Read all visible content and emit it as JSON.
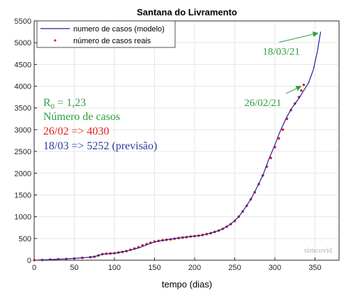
{
  "chart_data": {
    "type": "line",
    "title": "Santana do Livramento",
    "xlabel": "tempo (dias)",
    "ylabel": "",
    "xlim": [
      0,
      380
    ],
    "ylim": [
      0,
      5500
    ],
    "xticks": [
      0,
      50,
      100,
      150,
      200,
      250,
      300,
      350
    ],
    "yticks": [
      0,
      500,
      1000,
      1500,
      2000,
      2500,
      3000,
      3500,
      4000,
      4500,
      5000,
      5500
    ],
    "grid": true,
    "legend_position": "top-left",
    "series": [
      {
        "name": "numero de casos (modelo)",
        "style": "line",
        "color": "#1f1fa0",
        "x": [
          0,
          20,
          40,
          60,
          75,
          85,
          100,
          115,
          130,
          145,
          155,
          165,
          180,
          195,
          205,
          215,
          225,
          235,
          245,
          255,
          262,
          270,
          277,
          285,
          292,
          300,
          307,
          315,
          322,
          330,
          336,
          342,
          348,
          353,
          357
        ],
        "y": [
          0,
          15,
          30,
          55,
          80,
          140,
          160,
          210,
          280,
          390,
          440,
          470,
          510,
          545,
          565,
          600,
          650,
          720,
          830,
          1000,
          1180,
          1400,
          1650,
          1950,
          2300,
          2650,
          2980,
          3300,
          3520,
          3720,
          3900,
          4080,
          4380,
          4800,
          5252
        ]
      },
      {
        "name": "número de casos reais",
        "style": "markers",
        "color": "#e02020",
        "x": [
          0,
          10,
          20,
          30,
          40,
          50,
          60,
          70,
          75,
          80,
          85,
          90,
          95,
          100,
          105,
          110,
          115,
          120,
          125,
          130,
          135,
          140,
          145,
          150,
          155,
          160,
          165,
          170,
          175,
          180,
          185,
          190,
          195,
          200,
          205,
          210,
          215,
          220,
          225,
          230,
          235,
          240,
          245,
          250,
          255,
          260,
          265,
          270,
          275,
          280,
          285,
          290,
          295,
          300,
          305,
          310,
          315,
          320,
          325,
          330,
          333,
          336
        ],
        "y": [
          0,
          5,
          15,
          22,
          30,
          40,
          55,
          70,
          80,
          110,
          140,
          150,
          155,
          160,
          175,
          190,
          210,
          240,
          270,
          300,
          340,
          370,
          400,
          430,
          445,
          460,
          470,
          480,
          495,
          510,
          520,
          530,
          545,
          555,
          565,
          580,
          600,
          620,
          650,
          680,
          720,
          770,
          830,
          900,
          1000,
          1120,
          1250,
          1400,
          1560,
          1750,
          1950,
          2150,
          2350,
          2600,
          2800,
          3000,
          3250,
          3450,
          3600,
          3750,
          3900,
          4030
        ]
      }
    ],
    "annotations": [
      {
        "text": "18/03/21",
        "color": "#2e9e40",
        "x": 308,
        "y": 4720,
        "arrow_to": [
          357,
          5252
        ]
      },
      {
        "text": "26/02/21",
        "color": "#2e9e40",
        "x": 285,
        "y": 3540,
        "arrow_to": [
          336,
          4030
        ]
      }
    ],
    "notes": {
      "r0_prefix": "R",
      "r0_sub": "0",
      "r0_value": " = 1,23",
      "heading": "Número de casos",
      "line1": "26/02 => 4030",
      "line2": "18/03 => 5252 (previsão)"
    },
    "watermark": "simcovid",
    "colors": {
      "notes_green": "#2e9e40",
      "notes_red": "#e02020",
      "notes_blue": "#2b3a9e",
      "grid": "#e6e6e6",
      "axis": "#262626"
    }
  }
}
